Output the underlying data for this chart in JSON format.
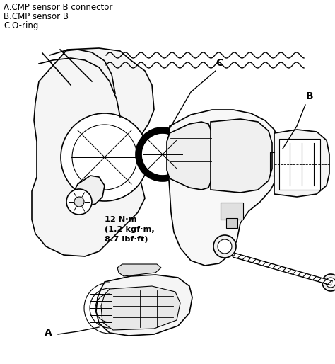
{
  "bg_color": "#ffffff",
  "line_color": "#000000",
  "legend_lines": [
    "A.CMP sensor B connector",
    "B.CMP sensor B",
    "C.O-ring"
  ],
  "torque_text": "12 N·m\n(1.2 kgf·m,\n8.7 lbf·ft)",
  "label_A": "A",
  "label_B": "B",
  "label_C": "C",
  "fig_width": 4.74,
  "fig_height": 5.14,
  "dpi": 100
}
